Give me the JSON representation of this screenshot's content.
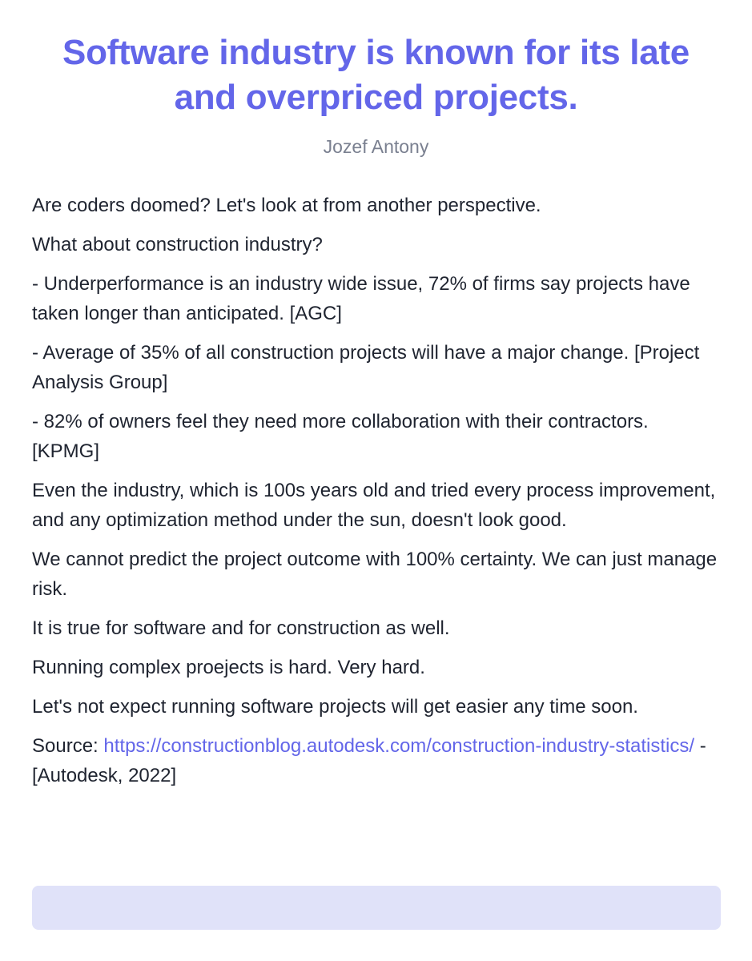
{
  "title": "Software industry is known for its late and overpriced projects.",
  "author": "Jozef Antony",
  "paragraphs": [
    "Are coders doomed? Let's look at from another perspective.",
    "What about construction industry?",
    "- Underperformance is an industry wide issue, 72% of firms say projects have taken longer than anticipated. [AGC]",
    "- Average of 35% of all construction projects will have a major change. [Project Analysis Group]",
    "- 82% of owners feel they need more collaboration with their contractors. [KPMG]",
    "Even the industry, which is 100s years old and tried every process improvement, and any optimization method under the sun, doesn't look good.",
    "We cannot predict the project outcome with 100% certainty. We can just manage risk.",
    "It is true for software and for construction as well.",
    "Running complex proejects is hard. Very hard.",
    "Let's not expect running software projects will get easier any time soon."
  ],
  "source": {
    "label": "Source: ",
    "url": "https://constructionblog.autodesk.com/construction-industry-statistics/",
    "suffix": " - [Autodesk, 2022]"
  },
  "colors": {
    "accent": "#6366e9",
    "muted": "#7a8090",
    "text": "#1f2430",
    "footer_bar": "#e0e2f9"
  }
}
